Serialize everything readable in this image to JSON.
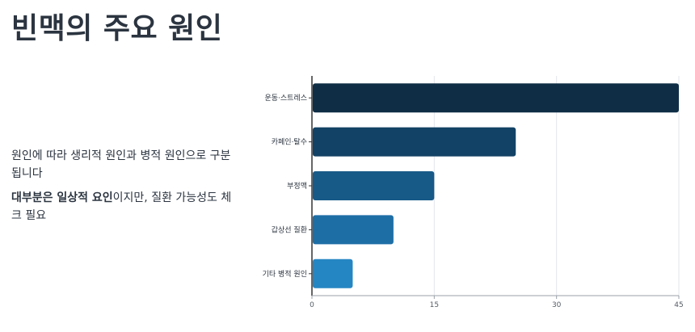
{
  "page": {
    "title": "빈맥의 주요 원인"
  },
  "description": {
    "line1": "원인에 따라 생리적 원인과 병적 원인으로 구분됩니다",
    "line2_bold": "대부분은 일상적 요인",
    "line2_rest": "이지만, 질환 가능성도 체크 필요"
  },
  "chart_data": {
    "type": "bar",
    "orientation": "horizontal",
    "categories": [
      "운동·스트레스",
      "카페인·탈수",
      "부정맥",
      "갑상선 질환",
      "기타 병적 원인"
    ],
    "values": [
      45,
      25,
      15,
      10,
      5
    ],
    "colors": [
      "#0f2e46",
      "#124265",
      "#175a88",
      "#1e6ea6",
      "#2586c4"
    ],
    "xlim": [
      0,
      45
    ],
    "xticks": [
      0,
      15,
      30,
      45
    ],
    "grid": true,
    "title": "",
    "xlabel": "",
    "ylabel": ""
  }
}
